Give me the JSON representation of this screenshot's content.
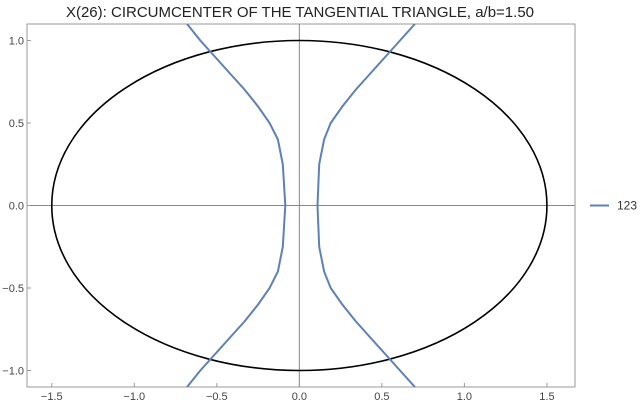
{
  "chart_data": {
    "type": "line",
    "title": "X(26): CIRCUMCENTER OF THE TANGENTIAL TRIANGLE, a/b=1.50",
    "xlabel": "",
    "ylabel": "",
    "xlim": [
      -1.65,
      1.67
    ],
    "ylim": [
      -1.1,
      1.1
    ],
    "grid": false,
    "axes_through_origin": true,
    "legend_position": "right",
    "xticks": [
      {
        "value": -1.5,
        "label": "−1.5"
      },
      {
        "value": -1.0,
        "label": "−1.0"
      },
      {
        "value": -0.5,
        "label": "−0.5"
      },
      {
        "value": 0.0,
        "label": "0.0"
      },
      {
        "value": 0.5,
        "label": "0.5"
      },
      {
        "value": 1.0,
        "label": "1.0"
      },
      {
        "value": 1.5,
        "label": "1.5"
      }
    ],
    "yticks": [
      {
        "value": -1.0,
        "label": "−1.0"
      },
      {
        "value": -0.5,
        "label": "−0.5"
      },
      {
        "value": 0.0,
        "label": "0.0"
      },
      {
        "value": 0.5,
        "label": "0.5"
      },
      {
        "value": 1.0,
        "label": "1.0"
      }
    ],
    "ellipse": {
      "a": 1.5,
      "b": 1.0,
      "color": "#000000"
    },
    "series": [
      {
        "name": "123",
        "color": "#5e81b5",
        "branches": [
          {
            "x": [
              -0.68,
              -0.6,
              -0.51,
              -0.42,
              -0.33,
              -0.25,
              -0.18,
              -0.13,
              -0.1,
              -0.085,
              -0.1,
              -0.13,
              -0.18,
              -0.25,
              -0.33,
              -0.42,
              -0.51,
              -0.6,
              -0.68
            ],
            "y": [
              -1.1,
              -1.0,
              -0.9,
              -0.8,
              -0.7,
              -0.6,
              -0.5,
              -0.4,
              -0.25,
              0.0,
              0.25,
              0.4,
              0.5,
              0.6,
              0.7,
              0.8,
              0.9,
              1.0,
              1.1
            ]
          },
          {
            "x": [
              0.7,
              0.61,
              0.52,
              0.43,
              0.34,
              0.26,
              0.19,
              0.15,
              0.12,
              0.11,
              0.12,
              0.15,
              0.19,
              0.26,
              0.34,
              0.43,
              0.52,
              0.61,
              0.7
            ],
            "y": [
              -1.1,
              -1.0,
              -0.9,
              -0.8,
              -0.7,
              -0.6,
              -0.5,
              -0.4,
              -0.25,
              0.0,
              0.25,
              0.4,
              0.5,
              0.6,
              0.7,
              0.8,
              0.9,
              1.0,
              1.1
            ]
          }
        ]
      }
    ]
  }
}
